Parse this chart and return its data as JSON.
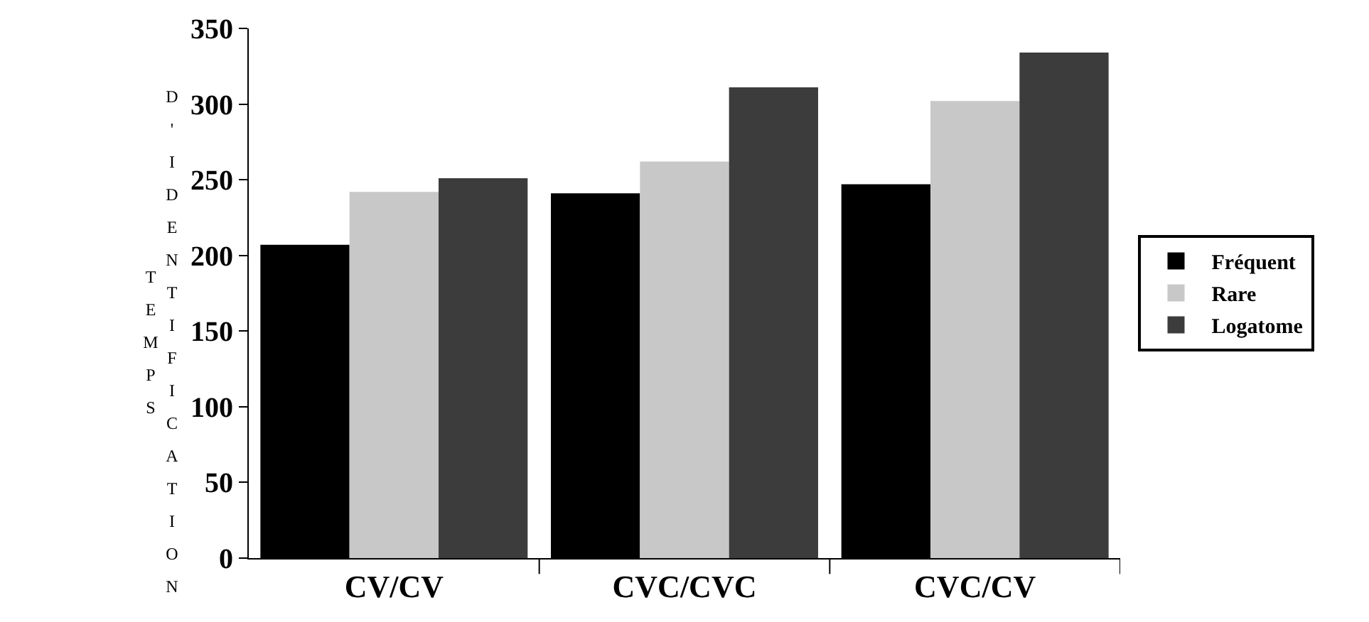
{
  "chart_data": {
    "type": "bar",
    "ylabel": "TEMPS D'IDENTIFICATION",
    "categories": [
      "CV/CV",
      "CVC/CVC",
      "CVC/CV"
    ],
    "series": [
      {
        "name": "Fréquent",
        "color": "#000000",
        "values": [
          207,
          241,
          247
        ]
      },
      {
        "name": "Rare",
        "color": "#c8c8c8",
        "values": [
          242,
          262,
          302
        ]
      },
      {
        "name": "Logatome",
        "color": "#3c3c3c",
        "values": [
          251,
          311,
          334
        ]
      }
    ],
    "ylim": [
      0,
      350
    ],
    "yticks": [
      0,
      50,
      100,
      150,
      200,
      250,
      300,
      350
    ],
    "grid": false,
    "legend": "right"
  }
}
